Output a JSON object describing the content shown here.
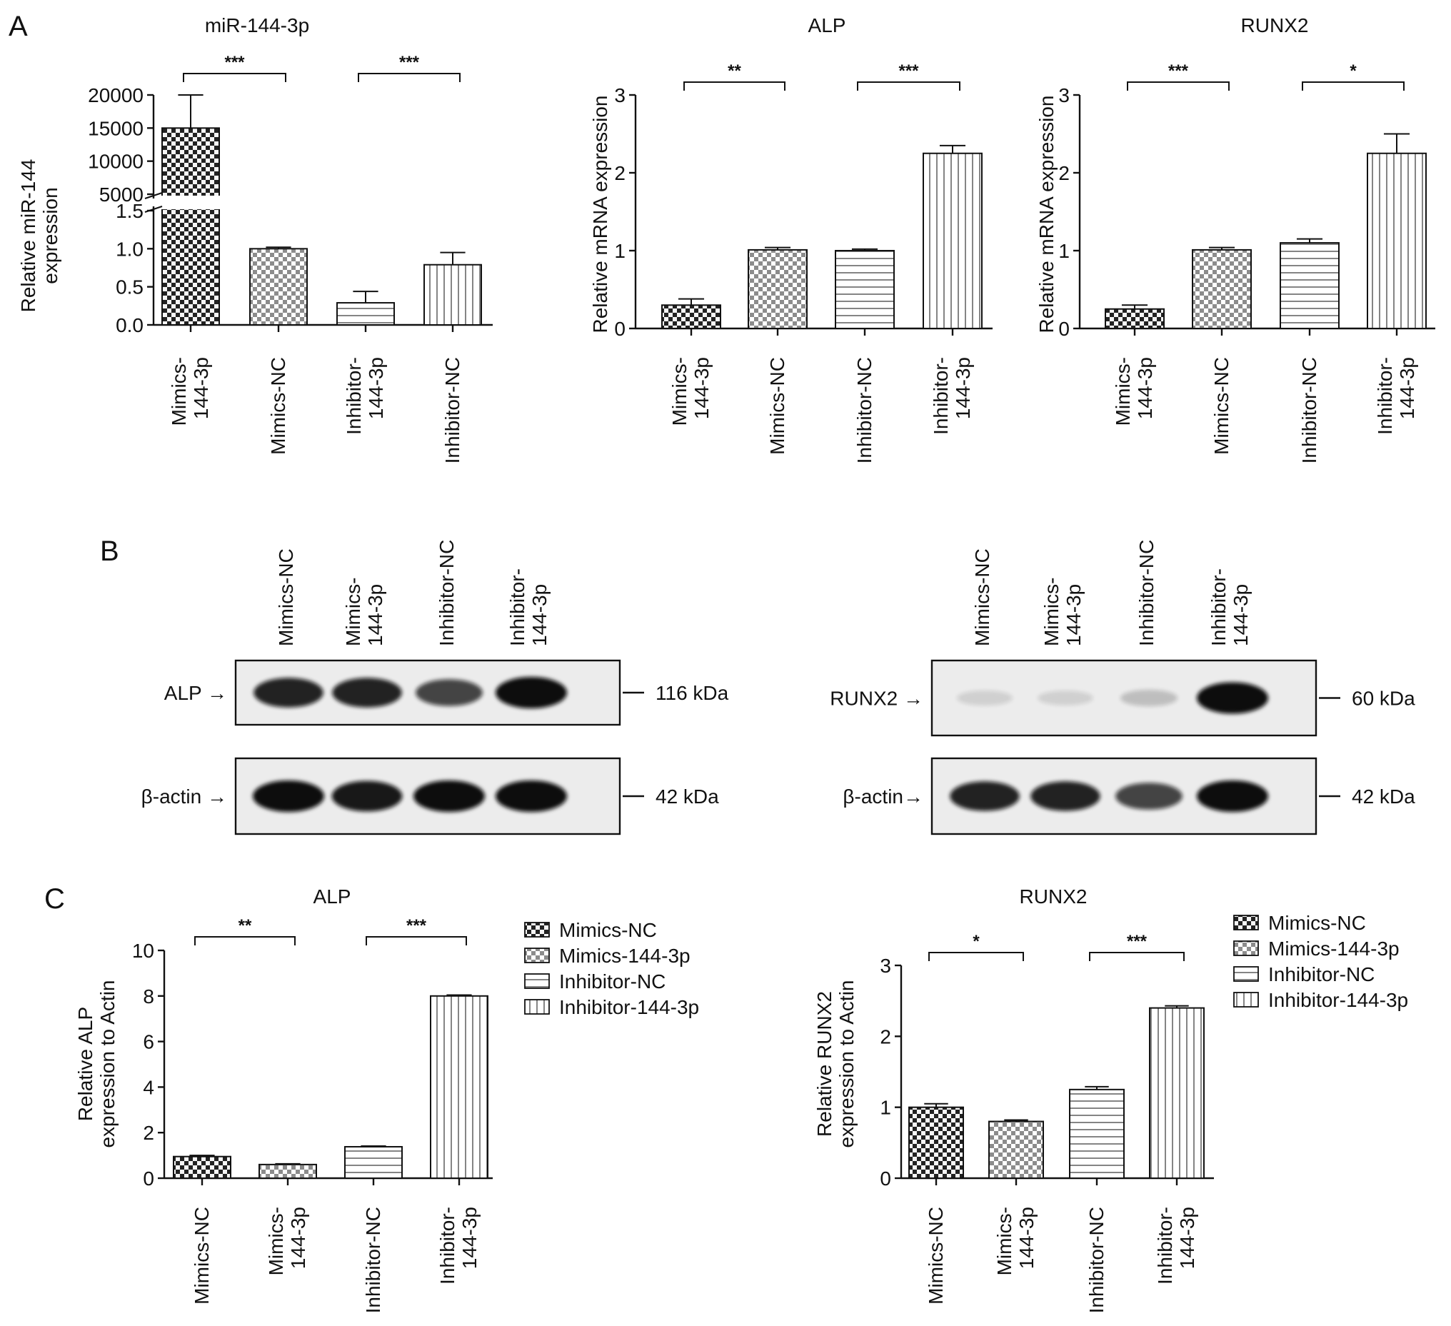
{
  "panels": {
    "a": "A",
    "b": "B",
    "c": "C"
  },
  "colors": {
    "ink": "#111111",
    "blot_bg": "#ececec",
    "band": "#0d0d0d",
    "faint_band": "#8a8a8a"
  },
  "chart_data": [
    {
      "id": "a1",
      "type": "bar",
      "title": "miR-144-3p",
      "ylabel": [
        "Relative miR-144",
        "expression"
      ],
      "categories": [
        "Mimics-\n144-3p",
        "Mimics-NC",
        "Inhibitor-\n144-3p",
        "Inhibitor-NC"
      ],
      "values": [
        15000,
        1.0,
        0.29,
        0.79
      ],
      "errors": [
        5000,
        0.02,
        0.15,
        0.16
      ],
      "patterns": [
        "checker-dark",
        "checker-light",
        "hstripe",
        "vstripe"
      ],
      "y_axis_break": {
        "lower_ylim": [
          0,
          1.5
        ],
        "lower_ticks": [
          "0.0",
          "0.5",
          "1.0",
          "1.5"
        ],
        "upper_ylim": [
          5000,
          20000
        ],
        "upper_ticks": [
          "5000",
          "10000",
          "15000",
          "20000"
        ]
      },
      "significance": [
        {
          "from": 0,
          "to": 1,
          "label": "***"
        },
        {
          "from": 2,
          "to": 3,
          "label": "***"
        }
      ]
    },
    {
      "id": "a2",
      "type": "bar",
      "title": "ALP",
      "ylabel": [
        "Relative mRNA expression"
      ],
      "categories": [
        "Mimics-\n144-3p",
        "Mimics-NC",
        "Inhibitor-NC",
        "Inhibitor-\n144-3p"
      ],
      "values": [
        0.3,
        1.01,
        1.0,
        2.25
      ],
      "errors": [
        0.08,
        0.03,
        0.02,
        0.1
      ],
      "patterns": [
        "checker-dark",
        "checker-light",
        "hstripe",
        "vstripe"
      ],
      "ylim": [
        0,
        3
      ],
      "yticks": [
        "0",
        "1",
        "2",
        "3"
      ],
      "significance": [
        {
          "from": 0,
          "to": 1,
          "label": "**"
        },
        {
          "from": 2,
          "to": 3,
          "label": "***"
        }
      ]
    },
    {
      "id": "a3",
      "type": "bar",
      "title": "RUNX2",
      "ylabel": [
        "Relative mRNA expression"
      ],
      "categories": [
        "Mimics-\n144-3p",
        "Mimics-NC",
        "Inhibitor-NC",
        "Inhibitor-\n144-3p"
      ],
      "values": [
        0.25,
        1.01,
        1.1,
        2.25
      ],
      "errors": [
        0.05,
        0.03,
        0.05,
        0.25
      ],
      "patterns": [
        "checker-dark",
        "checker-light",
        "hstripe",
        "vstripe"
      ],
      "ylim": [
        0,
        3
      ],
      "yticks": [
        "0",
        "1",
        "2",
        "3"
      ],
      "significance": [
        {
          "from": 0,
          "to": 1,
          "label": "***"
        },
        {
          "from": 2,
          "to": 3,
          "label": "*"
        }
      ]
    },
    {
      "id": "c1",
      "type": "bar",
      "title": "ALP",
      "ylabel": [
        "Relative ALP",
        "expression to Actin"
      ],
      "categories": [
        "Mimics-NC",
        "Mimics-\n144-3p",
        "Inhibitor-NC",
        "Inhibitor-\n144-3p"
      ],
      "values": [
        0.95,
        0.6,
        1.38,
        8.0
      ],
      "errors": [
        0.05,
        0.03,
        0.03,
        0.04
      ],
      "patterns": [
        "checker-dark",
        "checker-light",
        "hstripe",
        "vstripe"
      ],
      "ylim": [
        0,
        10
      ],
      "yticks": [
        "0",
        "2",
        "4",
        "6",
        "8",
        "10"
      ],
      "significance": [
        {
          "from": 0,
          "to": 1,
          "label": "**"
        },
        {
          "from": 2,
          "to": 3,
          "label": "***"
        }
      ],
      "legend": [
        "Mimics-NC",
        "Mimics-144-3p",
        "Inhibitor-NC",
        "Inhibitor-144-3p"
      ],
      "legend_position": "right"
    },
    {
      "id": "c2",
      "type": "bar",
      "title": "RUNX2",
      "ylabel": [
        "Relative RUNX2",
        "expression to Actin"
      ],
      "categories": [
        "Mimics-NC",
        "Mimics-\n144-3p",
        "Inhibitor-NC",
        "Inhibitor-\n144-3p"
      ],
      "values": [
        1.0,
        0.8,
        1.25,
        2.4
      ],
      "errors": [
        0.05,
        0.02,
        0.04,
        0.03
      ],
      "patterns": [
        "checker-dark",
        "checker-light",
        "hstripe",
        "vstripe"
      ],
      "ylim": [
        0,
        3
      ],
      "yticks": [
        "0",
        "1",
        "2",
        "3"
      ],
      "significance": [
        {
          "from": 0,
          "to": 1,
          "label": "*"
        },
        {
          "from": 2,
          "to": 3,
          "label": "***"
        }
      ],
      "legend": [
        "Mimics-NC",
        "Mimics-144-3p",
        "Inhibitor-NC",
        "Inhibitor-144-3p"
      ],
      "legend_position": "top-right"
    }
  ],
  "blots": [
    {
      "id": "alp",
      "lanes": [
        "Mimics-NC",
        "Mimics-\n144-3p",
        "Inhibitor-NC",
        "Inhibitor-\n144-3p"
      ],
      "rows": [
        {
          "label": "ALP →",
          "marker": "116 kDa",
          "intensity": [
            0.9,
            0.9,
            0.75,
            1.0
          ]
        },
        {
          "label": "β-actin →",
          "marker": "42 kDa",
          "intensity": [
            1.0,
            0.95,
            1.0,
            1.0
          ]
        }
      ]
    },
    {
      "id": "runx2",
      "lanes": [
        "Mimics-NC",
        "Mimics-\n144-3p",
        "Inhibitor-NC",
        "Inhibitor-\n144-3p"
      ],
      "rows": [
        {
          "label": "RUNX2 →",
          "marker": "60 kDa",
          "intensity": [
            0.12,
            0.1,
            0.2,
            1.0
          ]
        },
        {
          "label": "β-actin→",
          "marker": "42 kDa",
          "intensity": [
            0.9,
            0.9,
            0.75,
            1.0
          ]
        }
      ]
    }
  ]
}
